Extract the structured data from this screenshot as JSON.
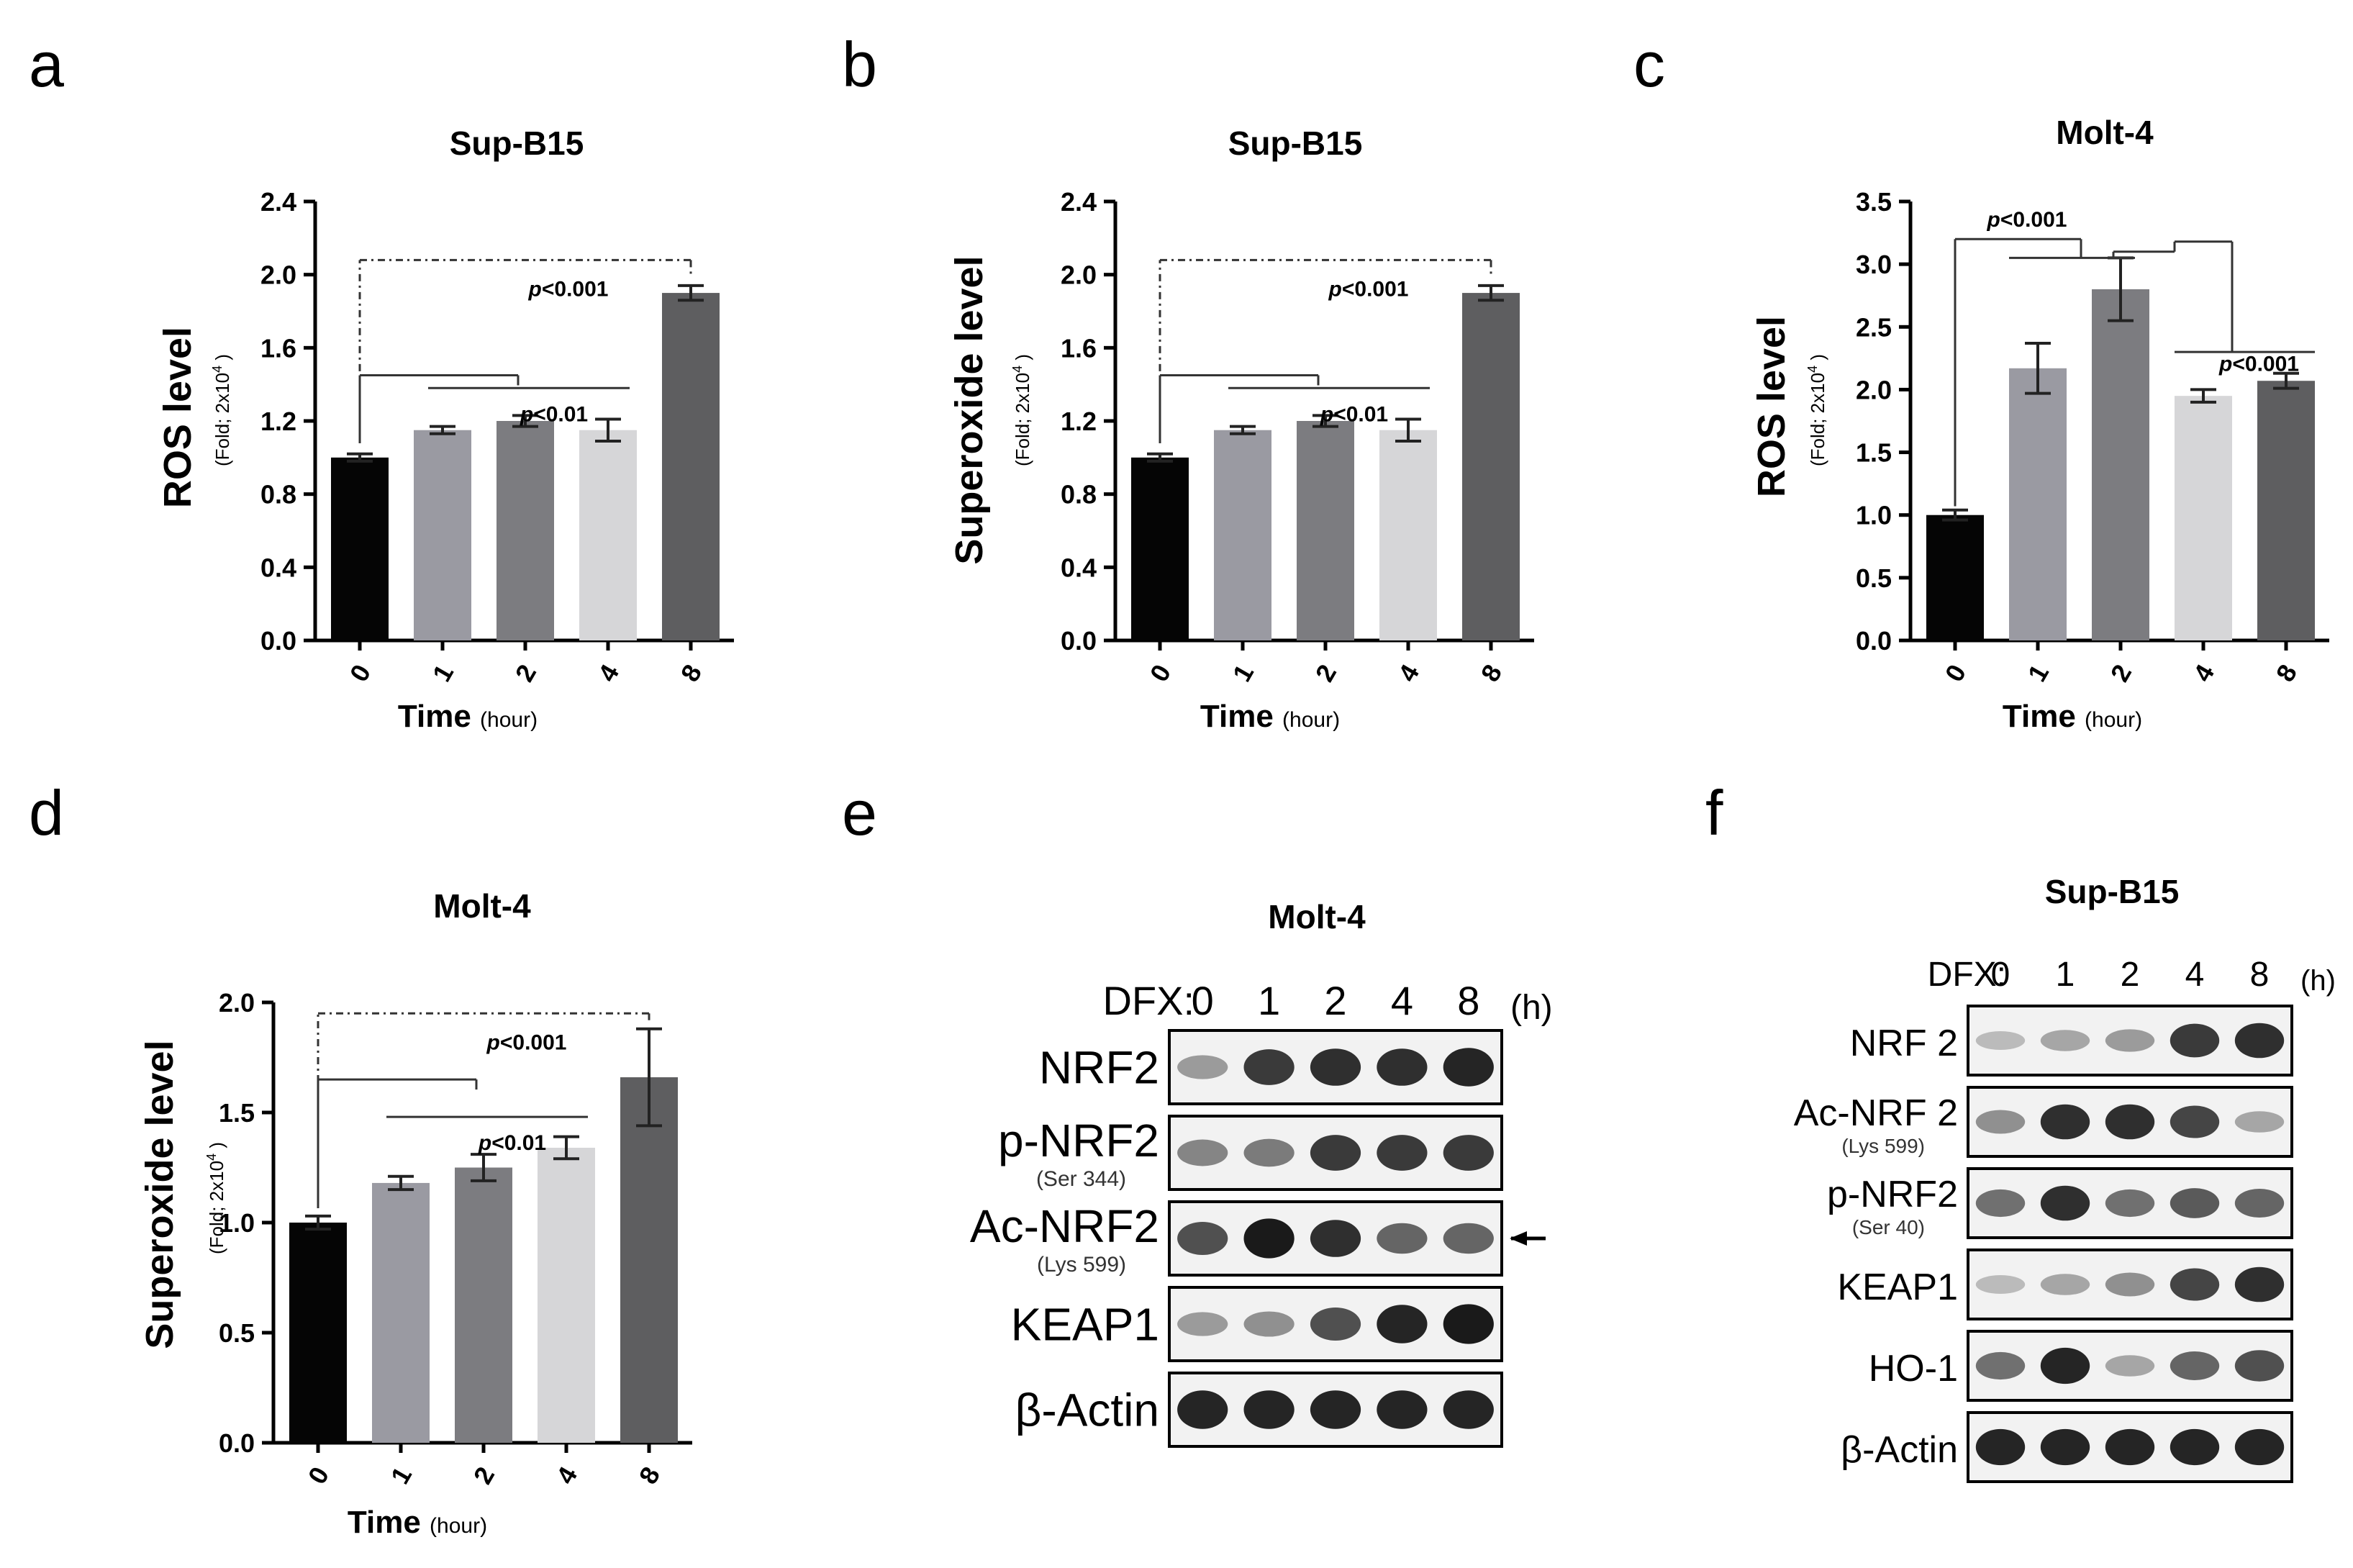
{
  "panel_letters": [
    "a",
    "b",
    "c",
    "d",
    "e",
    "f"
  ],
  "xlabel_main": "Time",
  "xlabel_unit": "(hour)",
  "ylabel_sub": "(Fold; 2x10",
  "ylabel_sub_exp": "4",
  "ylabel_sub_end": " )",
  "colors": [
    "#050505",
    "#9a9aa2",
    "#7c7c80",
    "#d6d6d8",
    "#5e5e60"
  ],
  "chart_data": [
    {
      "id": "a",
      "type": "bar",
      "title": "Sup-B15",
      "ylabel": "ROS level",
      "categories": [
        "0",
        "1",
        "2",
        "4",
        "8"
      ],
      "values": [
        1.0,
        1.15,
        1.2,
        1.15,
        1.9
      ],
      "errors": [
        0.02,
        0.02,
        0.03,
        0.06,
        0.04
      ],
      "ylim": [
        0,
        2.4
      ],
      "yticks": [
        "0.0",
        "0.4",
        "0.8",
        "1.2",
        "1.6",
        "2.0",
        "2.4"
      ],
      "annotations": [
        "p<0.001",
        "p<0.01"
      ]
    },
    {
      "id": "b",
      "type": "bar",
      "title": "Sup-B15",
      "ylabel": "Superoxide level",
      "categories": [
        "0",
        "1",
        "2",
        "4",
        "8"
      ],
      "values": [
        1.0,
        1.15,
        1.2,
        1.15,
        1.9
      ],
      "errors": [
        0.02,
        0.02,
        0.03,
        0.06,
        0.04
      ],
      "ylim": [
        0,
        2.4
      ],
      "yticks": [
        "0.0",
        "0.4",
        "0.8",
        "1.2",
        "1.6",
        "2.0",
        "2.4"
      ],
      "annotations": [
        "p<0.001",
        "p<0.01"
      ]
    },
    {
      "id": "c",
      "type": "bar",
      "title": "Molt-4",
      "ylabel": "ROS level",
      "categories": [
        "0",
        "1",
        "2",
        "4",
        "8"
      ],
      "values": [
        1.0,
        2.17,
        2.8,
        1.95,
        2.07
      ],
      "errors": [
        0.04,
        0.2,
        0.25,
        0.05,
        0.06
      ],
      "ylim": [
        0,
        3.5
      ],
      "yticks": [
        "0.0",
        "0.5",
        "1.0",
        "1.5",
        "2.0",
        "2.5",
        "3.0",
        "3.5"
      ],
      "annotations": [
        "p<0.001",
        "p<0.001"
      ]
    },
    {
      "id": "d",
      "type": "bar",
      "title": "Molt-4",
      "ylabel": "Superoxide level",
      "categories": [
        "0",
        "1",
        "2",
        "4",
        "8"
      ],
      "values": [
        1.0,
        1.18,
        1.25,
        1.34,
        1.66
      ],
      "errors": [
        0.03,
        0.03,
        0.06,
        0.05,
        0.22
      ],
      "ylim": [
        0,
        2.0
      ],
      "yticks": [
        "0.0",
        "0.5",
        "1.0",
        "1.5",
        "2.0"
      ],
      "annotations": [
        "p<0.001",
        "p<0.01"
      ]
    }
  ],
  "blot_e": {
    "title": "Molt-4",
    "dfx_label": "DFX:",
    "lanes": [
      "0",
      "1",
      "2",
      "4",
      "8"
    ],
    "unit": "(h)",
    "rows": [
      {
        "label": "NRF2",
        "sub": "",
        "intensity": [
          0.35,
          0.8,
          0.85,
          0.85,
          0.9
        ]
      },
      {
        "label": "p-NRF2",
        "sub": "(Ser 344)",
        "intensity": [
          0.45,
          0.5,
          0.8,
          0.8,
          0.8
        ]
      },
      {
        "label": "Ac-NRF2",
        "sub": "(Lys 599)",
        "intensity": [
          0.7,
          0.95,
          0.85,
          0.6,
          0.6
        ]
      },
      {
        "label": "KEAP1",
        "sub": "",
        "intensity": [
          0.35,
          0.4,
          0.7,
          0.9,
          0.95
        ]
      },
      {
        "label": "β-Actin",
        "sub": "",
        "intensity": [
          0.9,
          0.9,
          0.9,
          0.9,
          0.9
        ]
      }
    ]
  },
  "blot_f": {
    "title": "Sup-B15",
    "dfx_label": "DFX:",
    "lanes": [
      "0",
      "1",
      "2",
      "4",
      "8"
    ],
    "unit": "(h)",
    "rows": [
      {
        "label": "NRF 2",
        "sub": "",
        "intensity": [
          0.2,
          0.3,
          0.35,
          0.8,
          0.85
        ]
      },
      {
        "label": "Ac-NRF 2",
        "sub": "(Lys 599)",
        "intensity": [
          0.4,
          0.85,
          0.85,
          0.75,
          0.3
        ]
      },
      {
        "label": "p-NRF2",
        "sub": "(Ser 40)",
        "intensity": [
          0.55,
          0.85,
          0.55,
          0.65,
          0.6
        ]
      },
      {
        "label": "KEAP1",
        "sub": "",
        "intensity": [
          0.2,
          0.3,
          0.4,
          0.75,
          0.85
        ]
      },
      {
        "label": "HO-1",
        "sub": "",
        "intensity": [
          0.55,
          0.9,
          0.3,
          0.6,
          0.7
        ]
      },
      {
        "label": "β-Actin",
        "sub": "",
        "intensity": [
          0.9,
          0.9,
          0.9,
          0.9,
          0.9
        ]
      }
    ]
  }
}
